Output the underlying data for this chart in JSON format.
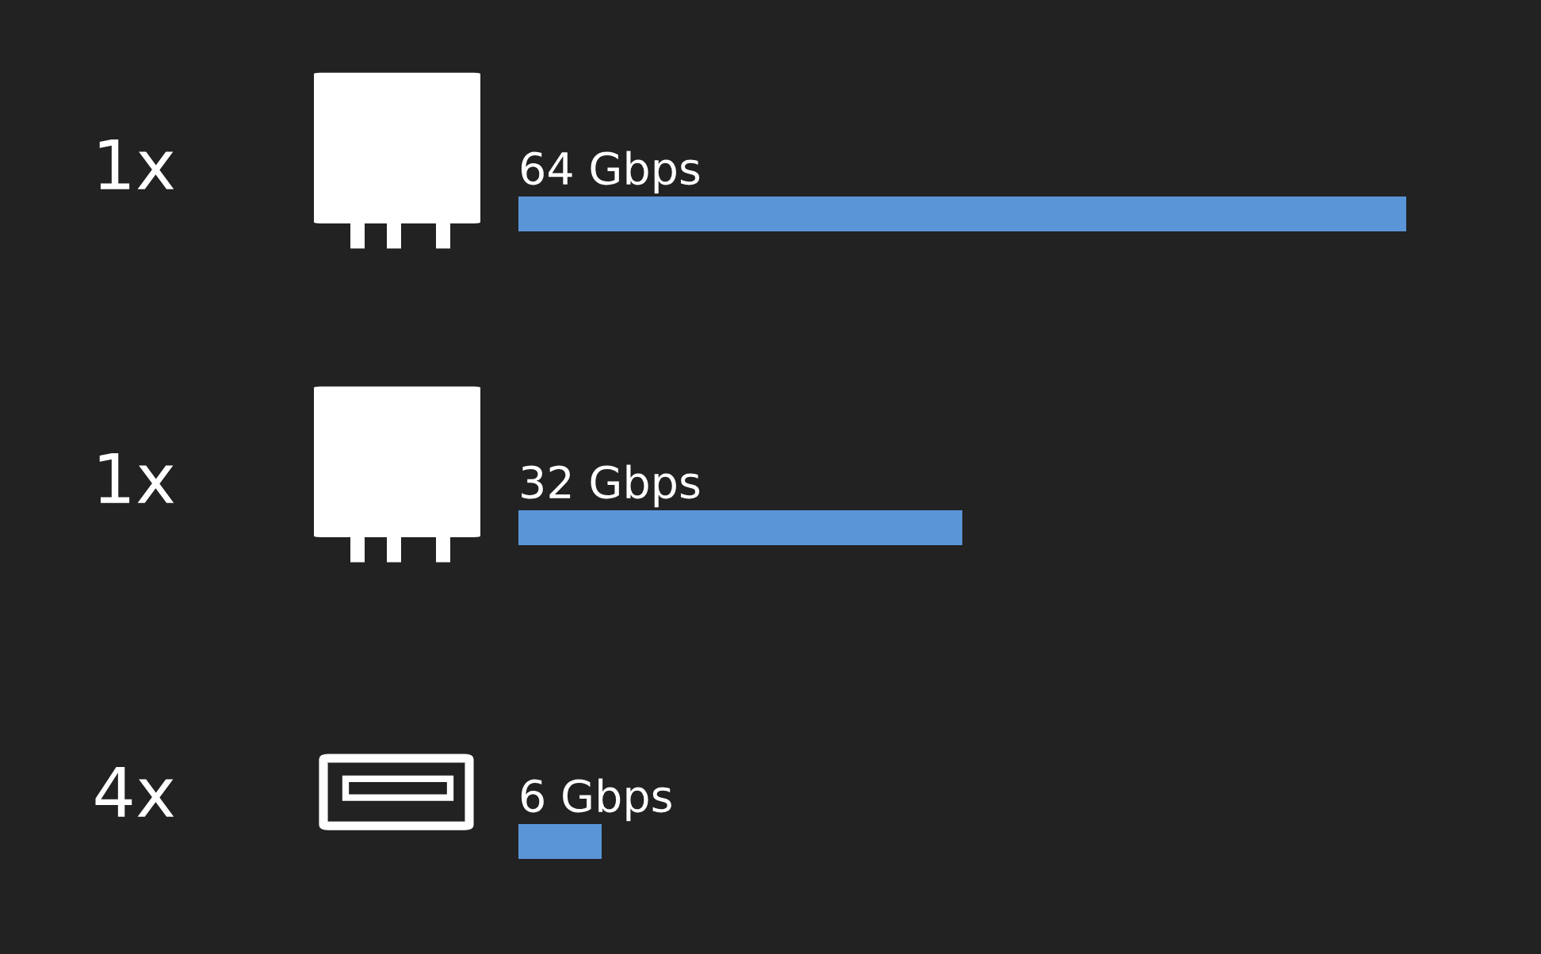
{
  "chart_data": {
    "type": "bar",
    "orientation": "horizontal",
    "categories": [
      "1x",
      "1x",
      "4x"
    ],
    "values": [
      64,
      32,
      6
    ],
    "value_labels": [
      "64 Gbps",
      "32 Gbps",
      "6 Gbps"
    ],
    "color": "#5a95d8",
    "grid": false,
    "legend": false,
    "tick_labels": "y"
  }
}
